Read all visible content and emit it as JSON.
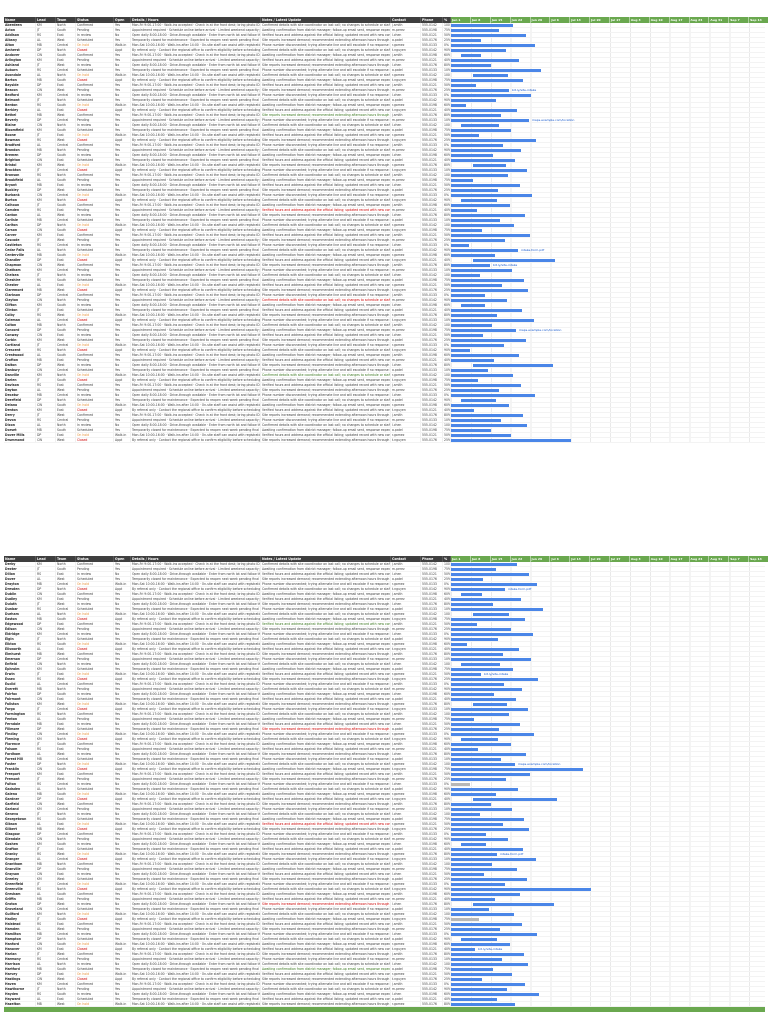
{
  "sheet": {
    "columns": [
      "Name",
      "Lead",
      "Team",
      "Status",
      "Open",
      "Details / Hours",
      "Notes / Latest Update",
      "Contact",
      "Phone",
      "%"
    ],
    "timeline": [
      "Jun 1",
      "Jun 8",
      "Jun 15",
      "Jun 22",
      "Jun 29",
      "Jul 6",
      "Jul 13",
      "Jul 20",
      "Jul 27",
      "Aug 3",
      "Aug 10",
      "Aug 17",
      "Aug 24",
      "Aug 31",
      "Sep 7",
      "Sep 14"
    ],
    "cycles": {
      "lead": [
        "KM",
        "JT",
        "RS",
        "AL",
        "MB",
        "DP",
        "CW"
      ],
      "team": [
        "North",
        "South",
        "East",
        "West",
        "Central"
      ],
      "status": [
        "Confirmed",
        "Pending",
        "In review",
        "Scheduled",
        "On hold",
        "Closed"
      ],
      "open": [
        "Yes",
        "Yes",
        "No",
        "Yes",
        "Walk-in",
        "Appt"
      ],
      "desc": [
        "Mon-Fri 9:00-17:00 · Walk-ins accepted · Check in at the front desk; bring photo ID and confirmation number",
        "Appointment required · Schedule online before arrival · Limited weekend capacity; arrive 10 min early",
        "Open daily 8:00-18:00 · Drive-through available · Enter from north lot and follow the posted signage",
        "Temporarily closed for maintenance · Expected to reopen next week pending final inspection results",
        "Mon-Sat 10:00-16:00 · Walk-ins after 14:00 · On-site staff can assist with registration and forms",
        "By referral only · Contact the regional office to confirm eligibility before scheduling a visit"
      ],
      "notes": [
        "Confirmed details with site coordinator on last call; no changes to schedule or staffing expected",
        "Awaiting confirmation from district manager; follow-up email sent, response expected this week",
        "Verified hours and address against the official listing; updated record with new contact person",
        "Site reports increased demand; recommended extending afternoon hours through end of the month",
        "Phone number disconnected; trying alternate line and will escalate if no response by Friday"
      ],
      "contact": [
        "j.smith",
        "m.perez",
        "l.chen",
        "a.patel",
        "r.gomez",
        "t.nguyen"
      ],
      "phone": [
        "555-0142",
        "555-0198",
        "555-0121",
        "555-0176",
        "555-0133"
      ],
      "pct": [
        "100%",
        "75%",
        "50%",
        "25%",
        "0%",
        "90%",
        "60%",
        "40%",
        "80%",
        "10%"
      ]
    },
    "links": [
      "bit.ly/site-intake",
      "maps.example.com/location",
      "intake-form.pdf"
    ],
    "status_colors": {
      "On hold": "#e69138",
      "Closed": "#cc0000"
    },
    "colors": {
      "header_bg": "#3f3f3f",
      "green": "#6aa84f",
      "bar": "#4a86e8",
      "bar_gray": "#b7b7b7",
      "link": "#1155cc"
    }
  },
  "blocks": [
    {
      "id": "block-1",
      "rows": [
        [
          "Aberdeen",
          0,
          62
        ],
        [
          "Acton",
          0,
          48
        ],
        [
          "Addison",
          0,
          75
        ],
        [
          "Albany",
          0,
          30
        ],
        [
          "Alton",
          0,
          84
        ],
        [
          "Amherst",
          0,
          55
        ],
        [
          "Andover",
          10,
          20
        ],
        [
          "Arlington",
          0,
          68
        ],
        [
          "Ashland",
          0,
          40
        ],
        [
          "Auburn",
          0,
          90
        ],
        [
          "Avondale",
          22,
          35
        ],
        [
          "Barton",
          0,
          72
        ],
        [
          "Bayside",
          0,
          25
        ],
        [
          "Beacon",
          0,
          58
        ],
        [
          "Bedford",
          0,
          80
        ],
        [
          "Belmont",
          0,
          45
        ],
        [
          "Benton",
          0,
          15
        ],
        [
          "Berkley",
          0,
          66
        ],
        [
          "Bethel",
          0,
          50
        ],
        [
          "Beverly",
          0,
          78
        ],
        [
          "Blaine",
          10,
          38
        ],
        [
          "Bloomfield",
          0,
          60
        ],
        [
          "Boone",
          0,
          28
        ],
        [
          "Bowman",
          0,
          85
        ],
        [
          "Bradford",
          0,
          52
        ],
        [
          "Brandon",
          0,
          70
        ],
        [
          "Bremen",
          0,
          42
        ],
        [
          "Brighton",
          0,
          64
        ],
        [
          "Bristol",
          22,
          33
        ],
        [
          "Brockton",
          0,
          76
        ],
        [
          "Bronson",
          0,
          57
        ],
        [
          "Brookfield",
          0,
          22
        ],
        [
          "Bryant",
          0,
          69
        ],
        [
          "Buckley",
          0,
          47
        ],
        [
          "Burbank",
          0,
          81
        ],
        [
          "Burton",
          10,
          36
        ],
        [
          "Calhoun",
          0,
          59
        ],
        [
          "Camden",
          0,
          26
        ],
        [
          "Canton",
          0,
          74
        ],
        [
          "Carlisle",
          0,
          49
        ],
        [
          "Carlton",
          0,
          63
        ],
        [
          "Carson",
          0,
          31
        ],
        [
          "Carver",
          0,
          79
        ],
        [
          "Cascade",
          0,
          54
        ],
        [
          "Castleton",
          0,
          18
        ],
        [
          "Cedar Falls",
          0,
          67
        ],
        [
          "Centerville",
          0,
          44
        ],
        [
          "Chandler",
          22,
          82
        ],
        [
          "Chapman",
          0,
          39
        ],
        [
          "Chatham",
          0,
          61
        ],
        [
          "Chelsea",
          0,
          29
        ],
        [
          "Cheshire",
          0,
          73
        ],
        [
          "Chester",
          0,
          51
        ],
        [
          "Claremont",
          0,
          77
        ],
        [
          "Clarkson",
          0,
          34
        ],
        [
          "Clayton",
          0,
          56
        ],
        [
          "Clifton",
          10,
          24
        ],
        [
          "Clinton",
          0,
          71
        ],
        [
          "Colby",
          0,
          46
        ],
        [
          "Coleman",
          0,
          83
        ],
        [
          "Colton",
          0,
          41
        ],
        [
          "Concord",
          0,
          65
        ],
        [
          "Conway",
          0,
          32
        ],
        [
          "Corbin",
          0,
          75
        ],
        [
          "Cortland",
          0,
          53
        ],
        [
          "Crescent",
          0,
          19
        ],
        [
          "Crestwood",
          0,
          68
        ],
        [
          "Crofton",
          0,
          43
        ],
        [
          "Dalton",
          22,
          80
        ],
        [
          "Danbury",
          0,
          37
        ],
        [
          "Danville",
          0,
          62
        ],
        [
          "Darien",
          0,
          27
        ],
        [
          "Davison",
          0,
          70
        ],
        [
          "Dayton",
          0,
          48
        ],
        [
          "Decatur",
          0,
          84
        ],
        [
          "Deerfield",
          10,
          35
        ],
        [
          "Delano",
          0,
          58
        ],
        [
          "Denton",
          0,
          23
        ],
        [
          "Derry",
          0,
          72
        ],
        [
          "Devon",
          0,
          50
        ],
        [
          "Dixon",
          0,
          76
        ],
        [
          "Dorset",
          0,
          40
        ],
        [
          "Dover Mills",
          0,
          60
        ],
        [
          "Drummond",
          0,
          120
        ]
      ],
      "links": [
        [
          13,
          0
        ],
        [
          19,
          1
        ],
        [
          45,
          2
        ],
        [
          48,
          0
        ],
        [
          61,
          1
        ]
      ],
      "red_rows": [
        37,
        55
      ],
      "green_rows": [
        18,
        70
      ],
      "gray_rows": [],
      "footer": false
    },
    {
      "id": "block-2",
      "rows": [
        [
          "Derby",
          0,
          66
        ],
        [
          "Dexter",
          0,
          45
        ],
        [
          "Dillon",
          0,
          78
        ],
        [
          "Dover",
          0,
          32
        ],
        [
          "Drayton",
          0,
          86
        ],
        [
          "Dresden",
          0,
          54
        ],
        [
          "Dublin",
          10,
          21
        ],
        [
          "Dudley",
          0,
          70
        ],
        [
          "Duluth",
          0,
          42
        ],
        [
          "Dunbar",
          0,
          92
        ],
        [
          "Durham",
          22,
          36
        ],
        [
          "Easton",
          0,
          74
        ],
        [
          "Edgewood",
          0,
          26
        ],
        [
          "Edison",
          0,
          60
        ],
        [
          "Eldridge",
          0,
          82
        ],
        [
          "Elgin",
          0,
          47
        ],
        [
          "Elkton",
          0,
          16
        ],
        [
          "Ellsworth",
          0,
          68
        ],
        [
          "Elmhurst",
          0,
          52
        ],
        [
          "Emerson",
          0,
          80
        ],
        [
          "Enfield",
          10,
          39
        ],
        [
          "Ephraim",
          0,
          62
        ],
        [
          "Erwin",
          0,
          30
        ],
        [
          "Essex",
          0,
          87
        ],
        [
          "Euclid",
          0,
          53
        ],
        [
          "Everett",
          0,
          71
        ],
        [
          "Fairfax",
          0,
          43
        ],
        [
          "Fairmont",
          0,
          65
        ],
        [
          "Fallston",
          22,
          34
        ],
        [
          "Fargo",
          0,
          77
        ],
        [
          "Farmington",
          0,
          58
        ],
        [
          "Fenton",
          0,
          23
        ],
        [
          "Ferndale",
          0,
          69
        ],
        [
          "Fillmore",
          0,
          48
        ],
        [
          "Findlay",
          0,
          83
        ],
        [
          "Fleming",
          10,
          37
        ],
        [
          "Florence",
          0,
          60
        ],
        [
          "Folsom",
          0,
          27
        ],
        [
          "Fordham",
          0,
          75
        ],
        [
          "Forest Hill",
          0,
          50
        ],
        [
          "Foster",
          0,
          64
        ],
        [
          "Franklin",
          0,
          132
        ],
        [
          "Freeport",
          0,
          79
        ],
        [
          "Fremont",
          0,
          55
        ],
        [
          "Fulton",
          0,
          19
        ],
        [
          "Gadsden",
          0,
          67
        ],
        [
          "Galena",
          0,
          45
        ],
        [
          "Gardner",
          22,
          84
        ],
        [
          "Garfield",
          0,
          40
        ],
        [
          "Garland",
          0,
          61
        ],
        [
          "Geneva",
          0,
          29
        ],
        [
          "Georgetown",
          0,
          73
        ],
        [
          "Gibson",
          0,
          52
        ],
        [
          "Gilbert",
          0,
          78
        ],
        [
          "Glasgow",
          0,
          35
        ],
        [
          "Glendale",
          0,
          57
        ],
        [
          "Goshen",
          10,
          25
        ],
        [
          "Grafton",
          0,
          72
        ],
        [
          "Granby",
          0,
          46
        ],
        [
          "Granger",
          0,
          85
        ],
        [
          "Grantham",
          0,
          41
        ],
        [
          "Granville",
          0,
          66
        ],
        [
          "Grayson",
          0,
          33
        ],
        [
          "Greeley",
          0,
          76
        ],
        [
          "Greenfield",
          0,
          54
        ],
        [
          "Greenville",
          0,
          140
        ],
        [
          "Gresham",
          0,
          69
        ],
        [
          "Griffin",
          0,
          44
        ],
        [
          "Groton",
          22,
          81
        ],
        [
          "Groveland",
          0,
          38
        ],
        [
          "Guilford",
          0,
          63
        ],
        [
          "Hadley",
          0,
          28
        ],
        [
          "Halstead",
          0,
          71
        ],
        [
          "Hamden",
          0,
          49
        ],
        [
          "Hamilton",
          0,
          86
        ],
        [
          "Hampton",
          10,
          36
        ],
        [
          "Hanford",
          0,
          59
        ],
        [
          "Hanover",
          0,
          24
        ],
        [
          "Harlan",
          0,
          73
        ],
        [
          "Harmony",
          0,
          51
        ],
        [
          "Harrison",
          0,
          77
        ],
        [
          "Hartford",
          0,
          42
        ],
        [
          "Harvey",
          0,
          61
        ],
        [
          "Hastings",
          0,
          31
        ],
        [
          "Haven",
          0,
          74
        ],
        [
          "Hawthorne",
          0,
          56
        ],
        [
          "Hayden",
          0,
          88
        ],
        [
          "Hayward",
          0,
          46
        ],
        [
          "Hazelton",
          0,
          64
        ]
      ],
      "links": [
        [
          5,
          2
        ],
        [
          22,
          0
        ],
        [
          40,
          1
        ],
        [
          58,
          2
        ],
        [
          77,
          0
        ]
      ],
      "red_rows": [
        33,
        52,
        68
      ],
      "green_rows": [
        12,
        81
      ],
      "gray_rows": [
        44,
        71
      ],
      "footer": true
    }
  ]
}
